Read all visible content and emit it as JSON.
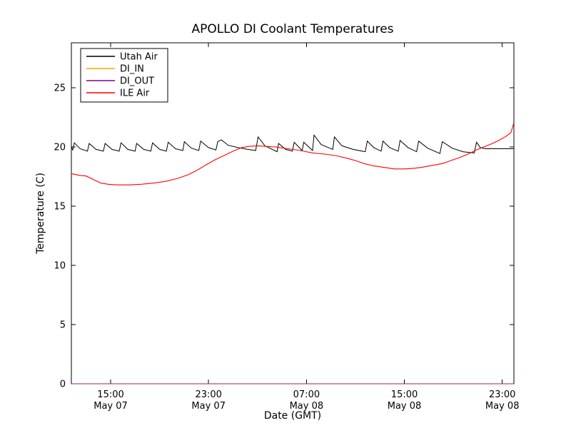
{
  "title": "APOLLO DI Coolant Temperatures",
  "xlabel": "Date (GMT)",
  "ylabel": "Temperature (C)",
  "legend": {
    "position": "upper left",
    "items": [
      {
        "label": "Utah Air",
        "color": "#000000"
      },
      {
        "label": "DI_IN",
        "color": "#ffa500"
      },
      {
        "label": "DI_OUT",
        "color": "#800080"
      },
      {
        "label": "ILE Air",
        "color": "#ff0000"
      }
    ]
  },
  "chart_data": {
    "type": "line",
    "title": "APOLLO DI Coolant Temperatures",
    "xlabel": "Date (GMT)",
    "ylabel": "Temperature (C)",
    "x_unit": "hours since May 07 00:00 GMT",
    "xlim": [
      11.79,
      47.95
    ],
    "ylim": [
      0,
      28.8
    ],
    "y_ticks": [
      0,
      5,
      10,
      15,
      20,
      25
    ],
    "x_ticks": [
      {
        "t": 15,
        "time": "15:00",
        "date": "May 07"
      },
      {
        "t": 23,
        "time": "23:00",
        "date": "May 07"
      },
      {
        "t": 31,
        "time": "07:00",
        "date": "May 08"
      },
      {
        "t": 39,
        "time": "15:00",
        "date": "May 08"
      },
      {
        "t": 47,
        "time": "23:00",
        "date": "May 08"
      }
    ],
    "grid": false,
    "legend_position": "upper left",
    "series": [
      {
        "name": "Utah Air",
        "color": "#000000",
        "points": [
          [
            11.79,
            20.0
          ],
          [
            11.9,
            19.75
          ],
          [
            12.03,
            20.35
          ],
          [
            12.5,
            19.85
          ],
          [
            13.1,
            19.65
          ],
          [
            13.25,
            20.3
          ],
          [
            13.8,
            19.8
          ],
          [
            14.4,
            19.65
          ],
          [
            14.55,
            20.3
          ],
          [
            15.1,
            19.8
          ],
          [
            15.7,
            19.65
          ],
          [
            15.85,
            20.35
          ],
          [
            16.4,
            19.8
          ],
          [
            17.0,
            19.65
          ],
          [
            17.12,
            20.3
          ],
          [
            17.7,
            19.8
          ],
          [
            18.28,
            19.65
          ],
          [
            18.42,
            20.35
          ],
          [
            19.0,
            19.8
          ],
          [
            19.55,
            19.65
          ],
          [
            19.7,
            20.4
          ],
          [
            20.3,
            19.85
          ],
          [
            20.9,
            19.7
          ],
          [
            21.02,
            20.45
          ],
          [
            21.6,
            19.9
          ],
          [
            22.2,
            19.7
          ],
          [
            22.35,
            20.5
          ],
          [
            23.0,
            19.95
          ],
          [
            23.6,
            19.75
          ],
          [
            23.75,
            20.45
          ],
          [
            24.05,
            20.6
          ],
          [
            24.6,
            20.15
          ],
          [
            25.4,
            19.95
          ],
          [
            26.2,
            19.8
          ],
          [
            26.85,
            19.7
          ],
          [
            27.05,
            20.85
          ],
          [
            27.6,
            20.1
          ],
          [
            28.3,
            19.75
          ],
          [
            28.6,
            19.6
          ],
          [
            28.72,
            20.3
          ],
          [
            29.3,
            19.8
          ],
          [
            29.85,
            19.65
          ],
          [
            30.0,
            20.4
          ],
          [
            30.5,
            19.85
          ],
          [
            30.65,
            19.7
          ],
          [
            30.78,
            20.4
          ],
          [
            31.3,
            19.9
          ],
          [
            31.5,
            19.7
          ],
          [
            31.62,
            21.0
          ],
          [
            32.2,
            20.2
          ],
          [
            32.9,
            19.9
          ],
          [
            33.15,
            19.8
          ],
          [
            33.28,
            20.85
          ],
          [
            33.9,
            20.1
          ],
          [
            34.8,
            19.8
          ],
          [
            35.8,
            19.6
          ],
          [
            35.97,
            20.5
          ],
          [
            36.5,
            19.95
          ],
          [
            37.1,
            19.65
          ],
          [
            37.25,
            20.5
          ],
          [
            37.8,
            19.95
          ],
          [
            38.5,
            19.65
          ],
          [
            38.65,
            20.55
          ],
          [
            39.3,
            19.95
          ],
          [
            40.0,
            19.6
          ],
          [
            40.17,
            20.5
          ],
          [
            40.9,
            19.9
          ],
          [
            41.9,
            19.45
          ],
          [
            42.1,
            20.45
          ],
          [
            42.9,
            19.9
          ],
          [
            43.8,
            19.6
          ],
          [
            44.7,
            19.5
          ],
          [
            44.9,
            20.4
          ],
          [
            45.2,
            19.95
          ],
          [
            45.6,
            19.85
          ],
          [
            46.5,
            19.85
          ],
          [
            47.2,
            19.85
          ],
          [
            47.93,
            19.85
          ]
        ]
      },
      {
        "name": "DI_IN",
        "color": "#ffa500",
        "points": [
          [
            11.79,
            0
          ],
          [
            47.95,
            0
          ]
        ]
      },
      {
        "name": "DI_OUT",
        "color": "#800080",
        "points": [
          [
            11.79,
            0
          ],
          [
            47.95,
            0
          ]
        ]
      },
      {
        "name": "ILE Air",
        "color": "#ff0000",
        "points": [
          [
            11.79,
            17.75
          ],
          [
            12.5,
            17.6
          ],
          [
            13.0,
            17.55
          ],
          [
            13.6,
            17.25
          ],
          [
            14.2,
            16.95
          ],
          [
            14.8,
            16.85
          ],
          [
            15.5,
            16.8
          ],
          [
            16.5,
            16.8
          ],
          [
            17.5,
            16.85
          ],
          [
            18.5,
            16.95
          ],
          [
            19.5,
            17.1
          ],
          [
            20.5,
            17.35
          ],
          [
            21.3,
            17.65
          ],
          [
            22.0,
            18.0
          ],
          [
            22.8,
            18.5
          ],
          [
            23.5,
            18.9
          ],
          [
            24.3,
            19.3
          ],
          [
            25.0,
            19.65
          ],
          [
            25.7,
            19.95
          ],
          [
            26.3,
            20.05
          ],
          [
            27.0,
            20.1
          ],
          [
            27.7,
            20.05
          ],
          [
            28.5,
            20.0
          ],
          [
            29.5,
            19.85
          ],
          [
            30.5,
            19.7
          ],
          [
            31.5,
            19.5
          ],
          [
            32.5,
            19.4
          ],
          [
            33.5,
            19.25
          ],
          [
            34.5,
            19.0
          ],
          [
            35.0,
            18.85
          ],
          [
            35.7,
            18.6
          ],
          [
            36.5,
            18.4
          ],
          [
            37.5,
            18.25
          ],
          [
            38.2,
            18.15
          ],
          [
            39.0,
            18.15
          ],
          [
            39.8,
            18.2
          ],
          [
            40.5,
            18.3
          ],
          [
            41.3,
            18.45
          ],
          [
            42.1,
            18.6
          ],
          [
            42.8,
            18.85
          ],
          [
            43.5,
            19.1
          ],
          [
            44.2,
            19.4
          ],
          [
            45.0,
            19.8
          ],
          [
            45.6,
            20.05
          ],
          [
            46.2,
            20.3
          ],
          [
            46.8,
            20.6
          ],
          [
            47.3,
            20.9
          ],
          [
            47.7,
            21.2
          ],
          [
            47.93,
            22.0
          ]
        ]
      }
    ]
  }
}
